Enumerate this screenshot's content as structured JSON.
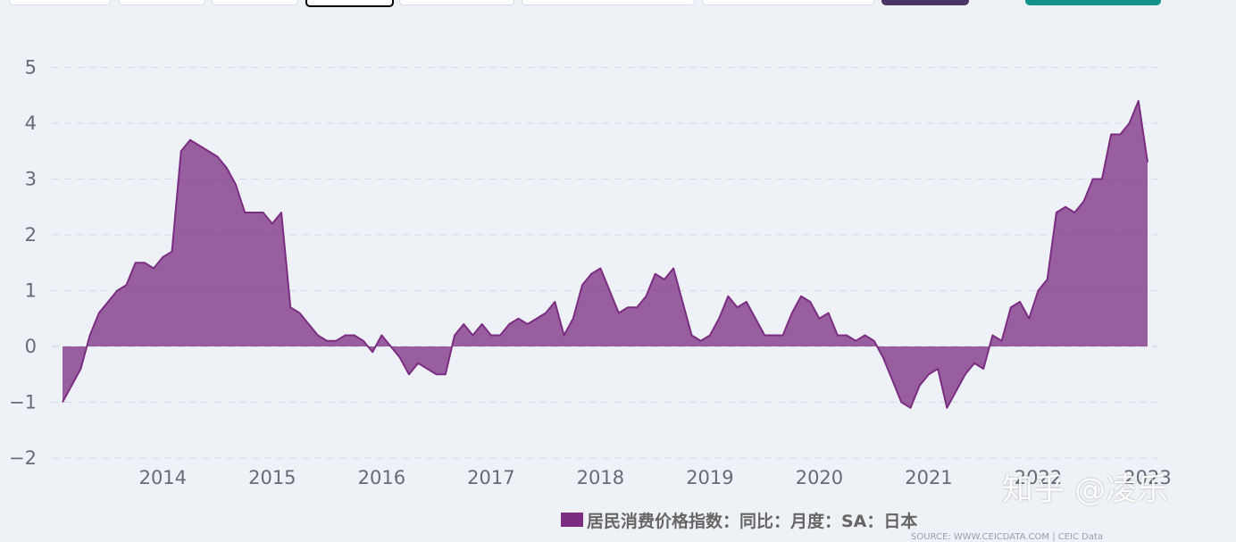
{
  "colors": {
    "series": "#7b2d82",
    "series_fill": "rgba(123,45,130,0.75)",
    "grid": "#d6dbe2",
    "zero_line": "#c8ced6",
    "toolbar_dark": "#4a3566",
    "toolbar_teal": "#11938a"
  },
  "legend": {
    "label": "居民消费价格指数：同比：月度：SA：日本"
  },
  "source": "SOURCE: WWW.CEICDATA.COM | CEIC Data",
  "watermark": "知乎 @凌乐",
  "chart_data": {
    "type": "area",
    "series": [
      {
        "name": "居民消费价格指数：同比：月度：SA：日本",
        "x_start": "2013-02",
        "frequency": "monthly",
        "values": [
          -1.0,
          -0.7,
          -0.4,
          0.2,
          0.6,
          0.8,
          1.0,
          1.1,
          1.5,
          1.5,
          1.4,
          1.6,
          1.7,
          3.5,
          3.7,
          3.6,
          3.5,
          3.4,
          3.2,
          2.9,
          2.4,
          2.4,
          2.4,
          2.2,
          2.4,
          0.7,
          0.6,
          0.4,
          0.2,
          0.1,
          0.1,
          0.2,
          0.2,
          0.1,
          -0.1,
          0.2,
          0.0,
          -0.2,
          -0.5,
          -0.3,
          -0.4,
          -0.5,
          -0.5,
          0.2,
          0.4,
          0.2,
          0.4,
          0.2,
          0.2,
          0.4,
          0.5,
          0.4,
          0.5,
          0.6,
          0.8,
          0.2,
          0.5,
          1.1,
          1.3,
          1.4,
          1.0,
          0.6,
          0.7,
          0.7,
          0.9,
          1.3,
          1.2,
          1.4,
          0.8,
          0.2,
          0.1,
          0.2,
          0.5,
          0.9,
          0.7,
          0.8,
          0.5,
          0.2,
          0.2,
          0.2,
          0.6,
          0.9,
          0.8,
          0.5,
          0.6,
          0.2,
          0.2,
          0.1,
          0.2,
          0.1,
          -0.2,
          -0.6,
          -1.0,
          -1.1,
          -0.7,
          -0.5,
          -0.4,
          -1.1,
          -0.8,
          -0.5,
          -0.3,
          -0.4,
          0.2,
          0.1,
          0.7,
          0.8,
          0.5,
          1.0,
          1.2,
          2.4,
          2.5,
          2.4,
          2.6,
          3.0,
          3.0,
          3.8,
          3.8,
          4.0,
          4.4,
          3.3
        ]
      }
    ],
    "x_ticks": [
      "2014",
      "2015",
      "2016",
      "2017",
      "2018",
      "2019",
      "2020",
      "2021",
      "2022",
      "2023"
    ],
    "y_ticks": [
      "5",
      "4",
      "3",
      "2",
      "1",
      "0",
      "−1",
      "−2"
    ],
    "ylim": [
      -2,
      5
    ],
    "grid": true,
    "legend_position": "bottom-center"
  }
}
